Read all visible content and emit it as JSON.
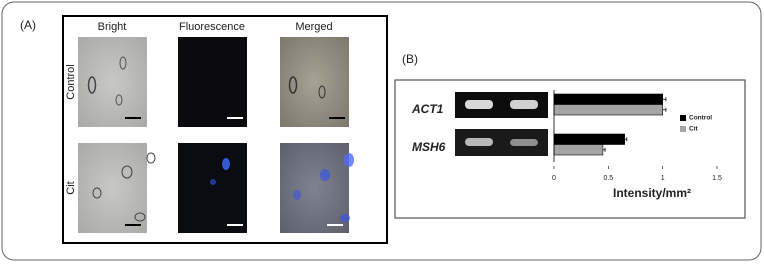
{
  "panel_a": {
    "label": "(A)",
    "columns": [
      "Bright",
      "Fluorescence",
      "Merged"
    ],
    "rows": [
      "Control",
      "Cit"
    ]
  },
  "panel_b": {
    "label": "(B)"
  },
  "chart_data": {
    "type": "hbar",
    "categories": [
      "ACT1",
      "MSH6"
    ],
    "series": [
      {
        "name": "Control",
        "color": "#000000",
        "values": [
          1,
          0.65
        ],
        "errors": [
          0.03,
          0.02
        ]
      },
      {
        "name": "Cit",
        "color": "#a6a6a6",
        "values": [
          1,
          0.45
        ],
        "errors": [
          0.03,
          0.02
        ]
      }
    ],
    "xlim": [
      0,
      1.5
    ],
    "xticks": [
      0,
      0.5,
      1,
      1.5
    ],
    "x_label": "Intensity/mm²",
    "legend": "right"
  }
}
